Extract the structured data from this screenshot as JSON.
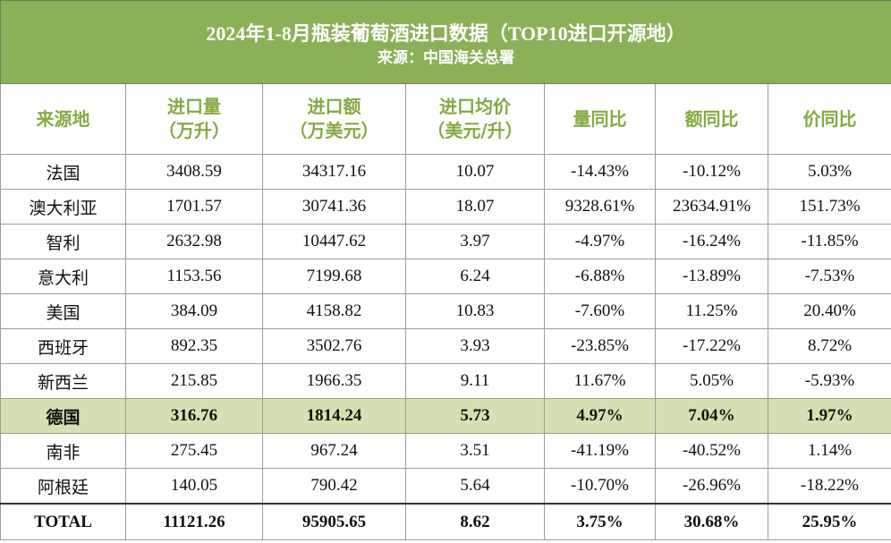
{
  "title": "2024年1-8月瓶装葡萄酒进口数据（TOP10进口开源地）",
  "subtitle": "来源：中国海关总署",
  "headers": [
    {
      "line1": "来源地",
      "line2": ""
    },
    {
      "line1": "进口量",
      "line2": "（万升）"
    },
    {
      "line1": "进口额",
      "line2": "（万美元）"
    },
    {
      "line1": "进口均价",
      "line2": "（美元/升）"
    },
    {
      "line1": "量同比",
      "line2": ""
    },
    {
      "line1": "额同比",
      "line2": ""
    },
    {
      "line1": "价同比",
      "line2": ""
    }
  ],
  "rows": [
    {
      "origin": "法国",
      "volume": "3408.59",
      "value": "34317.16",
      "price": "10.07",
      "vol_yoy": "-14.43%",
      "val_yoy": "-10.12%",
      "price_yoy": "5.03%"
    },
    {
      "origin": "澳大利亚",
      "volume": "1701.57",
      "value": "30741.36",
      "price": "18.07",
      "vol_yoy": "9328.61%",
      "val_yoy": "23634.91%",
      "price_yoy": "151.73%"
    },
    {
      "origin": "智利",
      "volume": "2632.98",
      "value": "10447.62",
      "price": "3.97",
      "vol_yoy": "-4.97%",
      "val_yoy": "-16.24%",
      "price_yoy": "-11.85%"
    },
    {
      "origin": "意大利",
      "volume": "1153.56",
      "value": "7199.68",
      "price": "6.24",
      "vol_yoy": "-6.88%",
      "val_yoy": "-13.89%",
      "price_yoy": "-7.53%"
    },
    {
      "origin": "美国",
      "volume": "384.09",
      "value": "4158.82",
      "price": "10.83",
      "vol_yoy": "-7.60%",
      "val_yoy": "11.25%",
      "price_yoy": "20.40%"
    },
    {
      "origin": "西班牙",
      "volume": "892.35",
      "value": "3502.76",
      "price": "3.93",
      "vol_yoy": "-23.85%",
      "val_yoy": "-17.22%",
      "price_yoy": "8.72%"
    },
    {
      "origin": "新西兰",
      "volume": "215.85",
      "value": "1966.35",
      "price": "9.11",
      "vol_yoy": "11.67%",
      "val_yoy": "5.05%",
      "price_yoy": "-5.93%"
    },
    {
      "origin": "德国",
      "volume": "316.76",
      "value": "1814.24",
      "price": "5.73",
      "vol_yoy": "4.97%",
      "val_yoy": "7.04%",
      "price_yoy": "1.97%"
    },
    {
      "origin": "南非",
      "volume": "275.45",
      "value": "967.24",
      "price": "3.51",
      "vol_yoy": "-41.19%",
      "val_yoy": "-40.52%",
      "price_yoy": "1.14%"
    },
    {
      "origin": "阿根廷",
      "volume": "140.05",
      "value": "790.42",
      "price": "5.64",
      "vol_yoy": "-10.70%",
      "val_yoy": "-26.96%",
      "price_yoy": "-18.22%"
    }
  ],
  "total": {
    "origin": "TOTAL",
    "volume": "11121.26",
    "value": "95905.65",
    "price": "8.62",
    "vol_yoy": "3.75%",
    "val_yoy": "30.68%",
    "price_yoy": "25.95%"
  },
  "colors": {
    "title_bg": "#8bb158",
    "header_text": "#84aa43",
    "highlight_row_bg": "#d3e1b5"
  }
}
